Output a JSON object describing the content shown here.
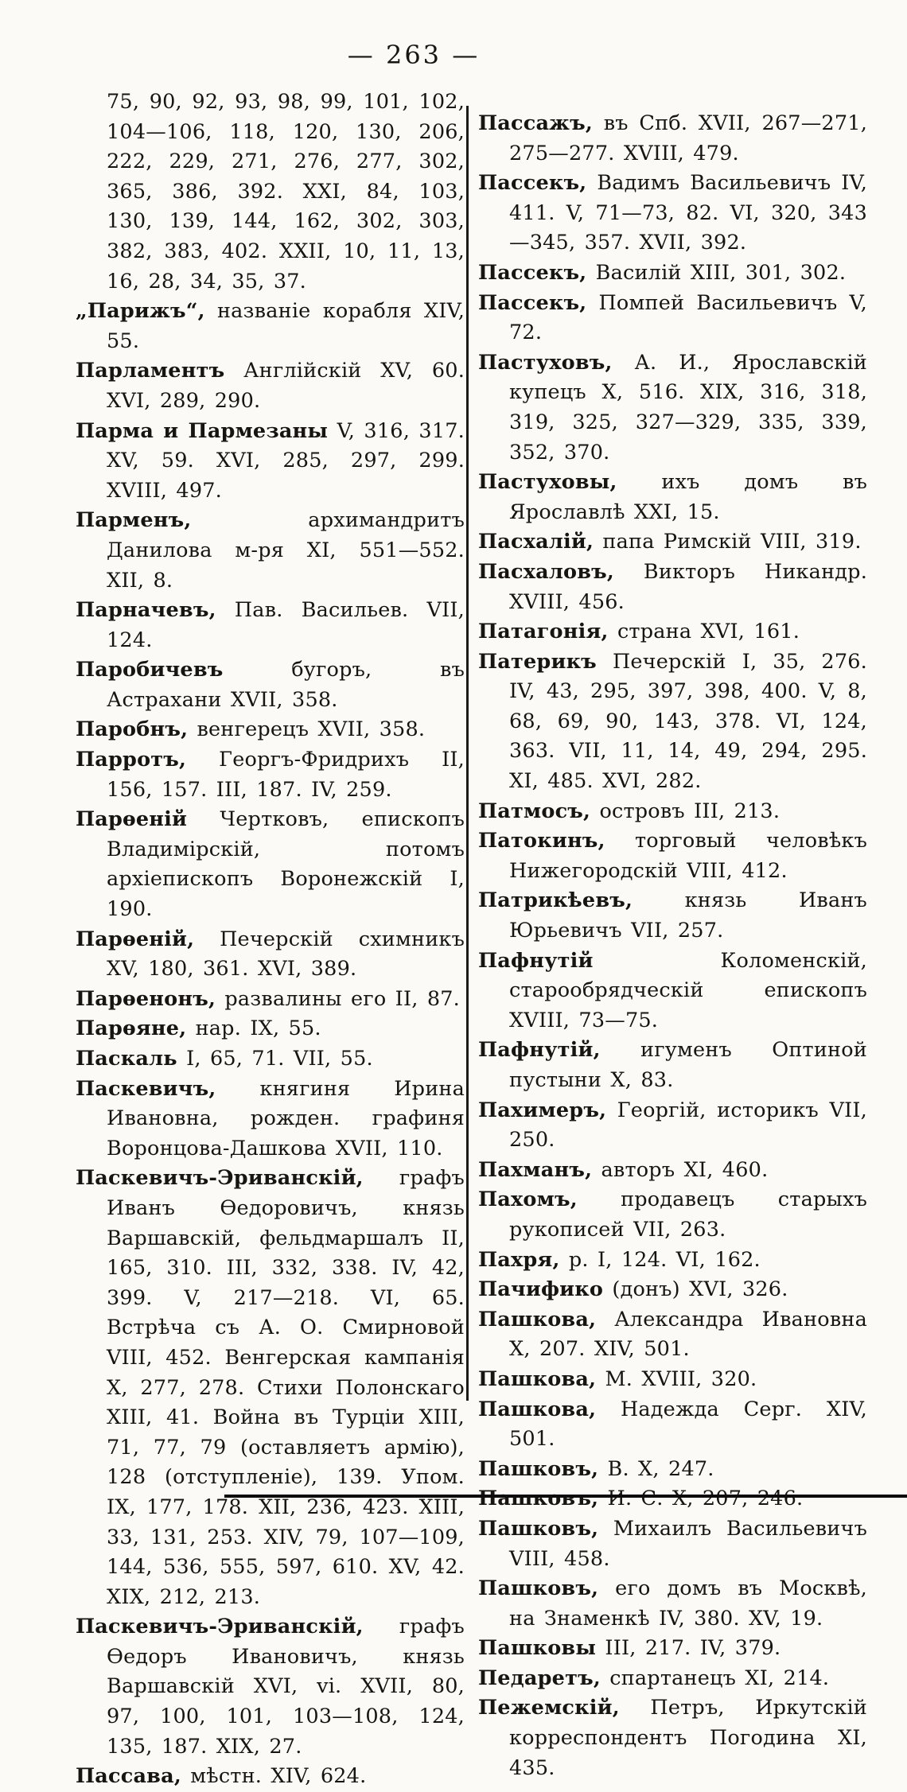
{
  "header": {
    "page_number": "— 263 —"
  },
  "left_column": {
    "entries": [
      {
        "head": "",
        "cont": true,
        "text": "75, 90, 92, 93, 98, 99, 101, 102, 104—106, 118, 120, 130, 206, 222, 229, 271, 276, 277, 302, 365, 386, 392. XXI, 84, 103, 130, 139, 144, 162, 302, 303, 382, 383, 402. XXII, 10, 11, 13, 16, 28, 34, 35, 37."
      },
      {
        "head": "„Парижъ“,",
        "text": " названіе корабля XIV, 55."
      },
      {
        "head": "Парламентъ",
        "text": " Англійскій XV, 60. XVI, 289, 290."
      },
      {
        "head": "Парма и Пармезаны",
        "text": " V, 316, 317. XV, 59. XVI, 285, 297, 299. XVIII, 497."
      },
      {
        "head": "Парменъ,",
        "text": " архимандритъ Данилова м-ря XI, 551—552. XII, 8."
      },
      {
        "head": "Парначевъ,",
        "text": " Пав. Васильев. VII, 124."
      },
      {
        "head": "Паробичевъ",
        "text": " бугоръ, въ Астрахани XVII, 358."
      },
      {
        "head": "Паробнъ,",
        "text": " венгерецъ XVII, 358."
      },
      {
        "head": "Парротъ,",
        "text": " Георгъ-Фридрихъ II, 156, 157. III, 187. IV, 259."
      },
      {
        "head": "Парѳеній",
        "text": " Чертковъ, епископъ Владимірскій, потомъ архіепископъ Воронежскій I, 190."
      },
      {
        "head": "Парѳеній,",
        "text": " Печерскій схимникъ XV, 180, 361. XVI, 389."
      },
      {
        "head": "Парѳенонъ,",
        "text": " развалины его II, 87."
      },
      {
        "head": "Парѳяне,",
        "text": " нар. IX, 55."
      },
      {
        "head": "Паскаль",
        "text": " I, 65, 71. VII, 55."
      },
      {
        "head": "Паскевичъ,",
        "text": " княгиня Ирина Ивановна, рожден. графиня Воронцова-Дашкова XVII, 110."
      },
      {
        "head": "Паскевичъ-Эриванскій,",
        "text": " графъ Иванъ Ѳедоровичъ, князь Варшавскій, фельдмаршалъ II, 165, 310. III, 332, 338. IV, 42, 399. V, 217—218. VI, 65. Встрѣча съ А. О. Смирновой VIII, 452. Венгерская кампанія X, 277, 278. Стихи Полонскаго XIII, 41. Война въ Турціи XIII, 71, 77, 79 (оставляетъ армію), 128 (отступленіе), 139. Упом. IX, 177, 178. XII, 236, 423. XIII, 33, 131, 253. XIV, 79, 107—109, 144, 536, 555, 597, 610. XV, 42. XIX, 212, 213."
      },
      {
        "head": "Паскевичъ-Эриванскій,",
        "text": " графъ Ѳедоръ Ивановичъ, князь Варшавскій XVI, vi. XVII, 80, 97, 100, 101, 103—108, 124, 135, 187. XIX, 27."
      },
      {
        "head": "Пассава,",
        "text": " мѣстн. XIV, 624."
      }
    ]
  },
  "right_column": {
    "entries": [
      {
        "head": "Пассажъ,",
        "text": " въ Спб. XVII, 267—271, 275—277. XVIII, 479."
      },
      {
        "head": "Пассекъ,",
        "text": " Вадимъ Васильевичъ IV, 411. V, 71—73, 82. VI, 320, 343—345, 357. XVII, 392."
      },
      {
        "head": "Пассекъ,",
        "text": " Василій XIII, 301, 302."
      },
      {
        "head": "Пассекъ,",
        "text": " Помпей Васильевичъ V, 72."
      },
      {
        "head": "Пастуховъ,",
        "text": " А. И., Ярославскій купецъ X, 516. XIX, 316, 318, 319, 325, 327—329, 335, 339, 352, 370."
      },
      {
        "head": "Пастуховы,",
        "text": " ихъ домъ въ Ярославлѣ XXI, 15."
      },
      {
        "head": "Пасхалій,",
        "text": " папа Римскій VIII, 319."
      },
      {
        "head": "Пасхаловъ,",
        "text": " Викторъ Никандр. XVIII, 456."
      },
      {
        "head": "Патагонія,",
        "text": " страна XVI, 161."
      },
      {
        "head": "Патерикъ",
        "text": " Печерскій I, 35, 276. IV, 43, 295, 397, 398, 400. V, 8, 68, 69, 90, 143, 378. VI, 124, 363. VII, 11, 14, 49, 294, 295. XI, 485. XVI, 282."
      },
      {
        "head": "Патмосъ,",
        "text": " островъ III, 213."
      },
      {
        "head": "Патокинъ,",
        "text": " торговый человѣкъ Нижегородскій VIII, 412."
      },
      {
        "head": "Патрикѣевъ,",
        "text": " князь Иванъ Юрьевичъ VII, 257."
      },
      {
        "head": "Пафнутій",
        "text": " Коломенскій, старообрядческій епископъ XVIII, 73—75."
      },
      {
        "head": "Пафнутій,",
        "text": " игуменъ Оптиной пустыни X, 83."
      },
      {
        "head": "Пахимеръ,",
        "text": " Георгій, историкъ VII, 250."
      },
      {
        "head": "Пахманъ,",
        "text": " авторъ XI, 460."
      },
      {
        "head": "Пахомъ,",
        "text": " продавецъ старыхъ рукописей VII, 263."
      },
      {
        "head": "Пахря,",
        "text": " р. I, 124. VI, 162."
      },
      {
        "head": "Пачифико",
        "text": " (донъ) XVI, 326."
      },
      {
        "head": "Пашкова,",
        "text": " Александра Ивановна X, 207. XIV, 501."
      },
      {
        "head": "Пашкова,",
        "text": " М. XVIII, 320."
      },
      {
        "head": "Пашкова,",
        "text": " Надежда Серг. XIV, 501."
      },
      {
        "head": "Пашковъ,",
        "text": " В. X, 247."
      },
      {
        "head": "Пашковъ,",
        "text": " И. С. X, 207, 246."
      },
      {
        "head": "Пашковъ,",
        "text": " Михаилъ Васильевичъ VIII, 458."
      },
      {
        "head": "Пашковъ,",
        "text": " его домъ въ Москвѣ, на Знаменкѣ IV, 380. XV, 19."
      },
      {
        "head": "Пашковы",
        "text": " III, 217. IV, 379."
      },
      {
        "head": "Педаретъ,",
        "text": " спартанецъ XI, 214."
      },
      {
        "head": "Пежемскій,",
        "text": " Петръ, Иркутскій корреспондентъ Погодина XI, 435."
      }
    ]
  }
}
